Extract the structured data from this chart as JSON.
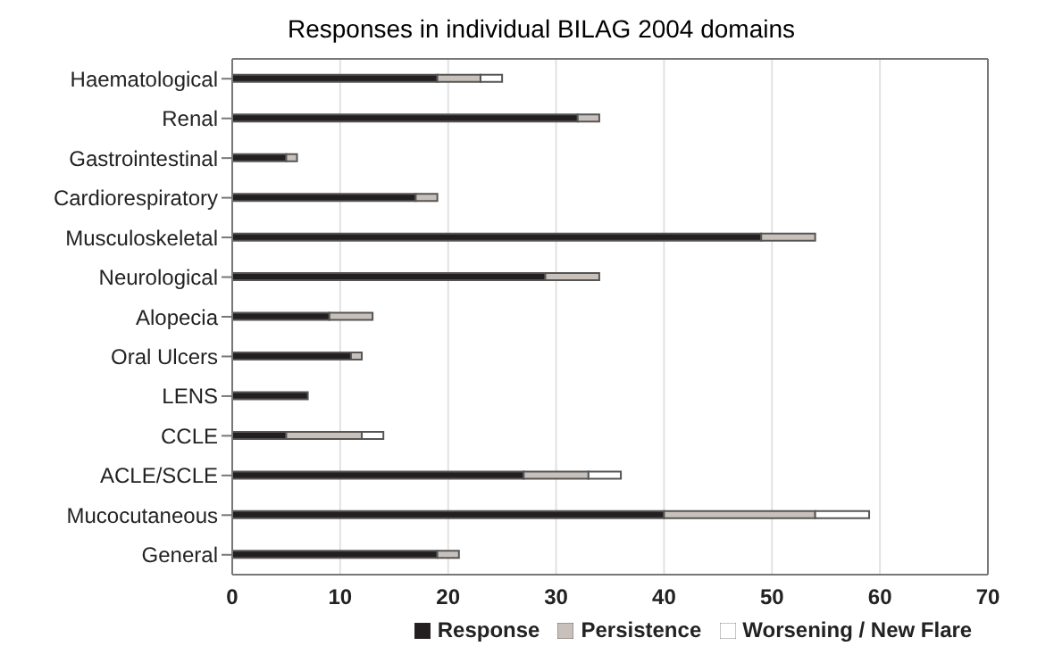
{
  "chart_data": {
    "type": "bar",
    "title": "Responses in individual BILAG 2004 domains",
    "orientation": "horizontal",
    "stacked": true,
    "categories": [
      "Haematological",
      "Renal",
      "Gastrointestinal",
      "Cardiorespiratory",
      "Musculoskeletal",
      "Neurological",
      "Alopecia",
      "Oral Ulcers",
      "LENS",
      "CCLE",
      "ACLE/SCLE",
      "Mucocutaneous",
      "General"
    ],
    "series": [
      {
        "name": "Response",
        "color": "#231f20",
        "values": [
          19,
          32,
          5,
          17,
          49,
          29,
          9,
          11,
          7,
          5,
          27,
          40,
          19
        ]
      },
      {
        "name": "Persistence",
        "color": "#c8c0bb",
        "values": [
          4,
          2,
          1,
          2,
          5,
          5,
          4,
          1,
          0,
          7,
          6,
          14,
          2
        ]
      },
      {
        "name": "Worsening / New Flare",
        "color": "#ffffff",
        "values": [
          2,
          0,
          0,
          0,
          0,
          0,
          0,
          0,
          0,
          2,
          3,
          5,
          0
        ]
      }
    ],
    "xlim": [
      0,
      70
    ],
    "xticks": [
      0,
      10,
      20,
      30,
      40,
      50,
      60,
      70
    ],
    "grid": "x",
    "legend": "bottom"
  }
}
